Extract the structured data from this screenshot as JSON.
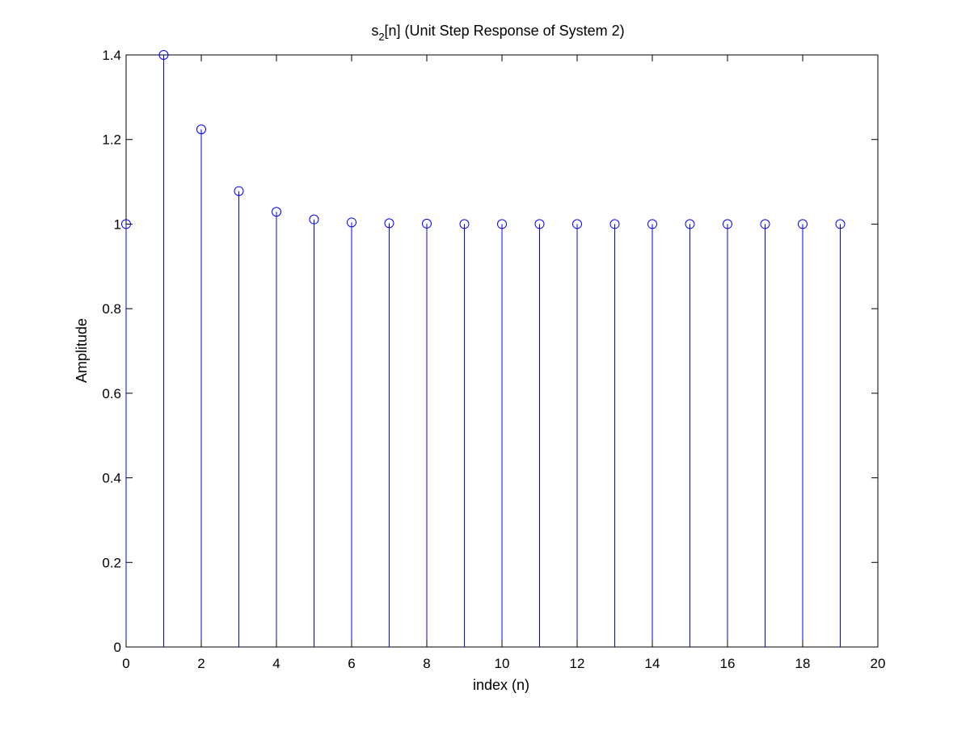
{
  "chart_data": {
    "type": "stem",
    "title_main": "s",
    "title_sub": "2",
    "title_rest": "[n] (Unit Step Response of System 2)",
    "xlabel": "index (n)",
    "ylabel": "Amplitude",
    "xlim": [
      0,
      20
    ],
    "ylim": [
      0,
      1.4
    ],
    "xticks": [
      0,
      2,
      4,
      6,
      8,
      10,
      12,
      14,
      16,
      18,
      20
    ],
    "xtick_labels": [
      "0",
      "2",
      "4",
      "6",
      "8",
      "10",
      "12",
      "14",
      "16",
      "18",
      "20"
    ],
    "yticks": [
      0,
      0.2,
      0.4,
      0.6,
      0.8,
      1.0,
      1.2,
      1.4
    ],
    "ytick_labels": [
      "0",
      "0.2",
      "0.4",
      "0.6",
      "0.8",
      "1",
      "1.2",
      "1.4"
    ],
    "grid": false,
    "color": "#0000ff",
    "series": [
      {
        "name": "s2[n]",
        "x": [
          0,
          1,
          2,
          3,
          4,
          5,
          6,
          7,
          8,
          9,
          10,
          11,
          12,
          13,
          14,
          15,
          16,
          17,
          18,
          19
        ],
        "y": [
          1.0,
          1.4,
          1.224,
          1.078,
          1.029,
          1.011,
          1.004,
          1.002,
          1.001,
          1.0,
          1.0,
          1.0,
          1.0,
          1.0,
          1.0,
          1.0,
          1.0,
          1.0,
          1.0,
          1.0
        ]
      }
    ]
  }
}
